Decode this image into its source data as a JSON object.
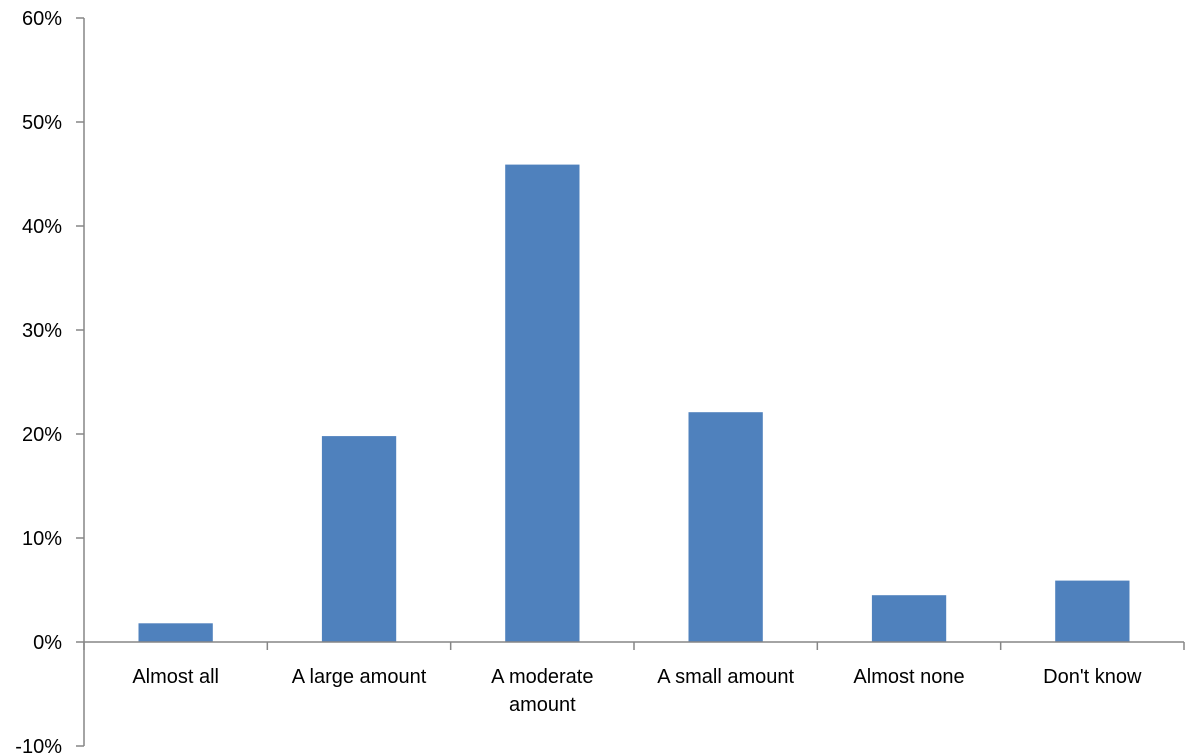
{
  "chart_data": {
    "type": "bar",
    "title": "",
    "xlabel": "",
    "ylabel": "",
    "categories": [
      "Almost all",
      "A large amount",
      "A moderate amount",
      "A small amount",
      "Almost none",
      "Don't know"
    ],
    "category_lines": [
      [
        "Almost all"
      ],
      [
        "A large amount"
      ],
      [
        "A moderate",
        "amount"
      ],
      [
        "A small amount"
      ],
      [
        "Almost none"
      ],
      [
        "Don't know"
      ]
    ],
    "values": [
      1.8,
      19.8,
      45.9,
      22.1,
      4.5,
      5.9
    ],
    "ylim": [
      -10,
      60
    ],
    "yticks": [
      -10,
      0,
      10,
      20,
      30,
      40,
      50,
      60
    ],
    "ytick_labels": [
      "-10%",
      "0%",
      "10%",
      "20%",
      "30%",
      "40%",
      "50%",
      "60%"
    ],
    "bar_color": "#4f81bd",
    "axis_color": "#868686",
    "grid": false,
    "legend": "none"
  }
}
